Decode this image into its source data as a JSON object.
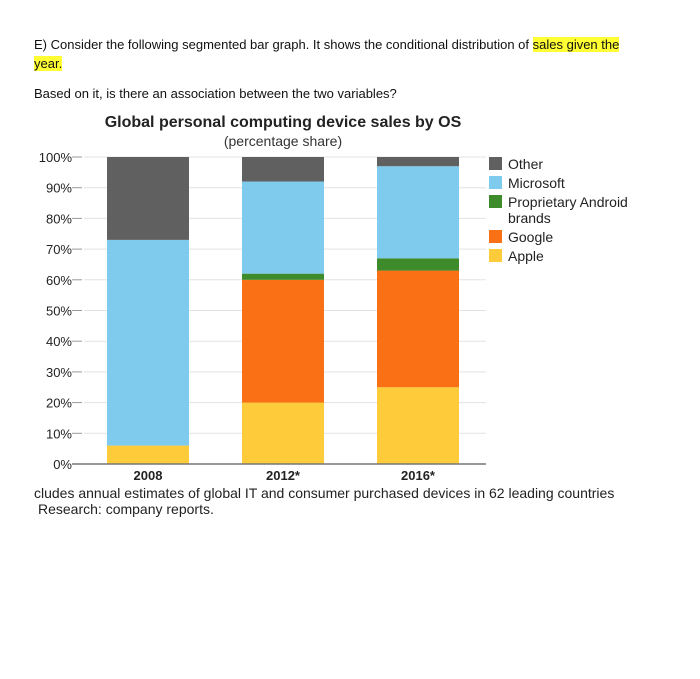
{
  "question": {
    "line_prefix": "E) Consider the following segmented bar graph. It shows the conditional distribution of ",
    "highlight": "sales given the year.",
    "subquestion": "Based on it, is there an association between the two variables?"
  },
  "chart_data": {
    "type": "bar",
    "stacked": true,
    "title": "Global personal computing device sales by OS",
    "subtitle": "(percentage share)",
    "categories": [
      "2008",
      "2012*",
      "2016*"
    ],
    "ylim": [
      0,
      100
    ],
    "yticks": [
      "0%",
      "10%",
      "20%",
      "30%",
      "40%",
      "50%",
      "60%",
      "70%",
      "80%",
      "90%",
      "100%"
    ],
    "legend_position": "right",
    "series": [
      {
        "name": "Apple",
        "color": "#fecb3a",
        "values": [
          6,
          20,
          25
        ]
      },
      {
        "name": "Google",
        "color": "#fa7014",
        "values": [
          0,
          40,
          38
        ]
      },
      {
        "name": "Proprietary Android brands",
        "color": "#3e8b2c",
        "values": [
          0,
          2,
          4
        ]
      },
      {
        "name": "Microsoft",
        "color": "#7ecbee",
        "values": [
          67,
          30,
          30
        ]
      },
      {
        "name": "Other",
        "color": "#606060",
        "values": [
          27,
          8,
          3
        ]
      }
    ],
    "legend_order": [
      "Other",
      "Microsoft",
      "Proprietary Android brands",
      "Google",
      "Apple"
    ],
    "legend_lines": {
      "Other": [
        "Other"
      ],
      "Microsoft": [
        "Microsoft"
      ],
      "Proprietary Android brands": [
        "Proprietary Android",
        "brands"
      ],
      "Google": [
        "Google"
      ],
      "Apple": [
        "Apple"
      ]
    }
  },
  "footnote": {
    "line1": "cludes annual estimates of global IT and consumer purchased devices in 62 leading countries",
    "line2": "Research: company reports."
  }
}
